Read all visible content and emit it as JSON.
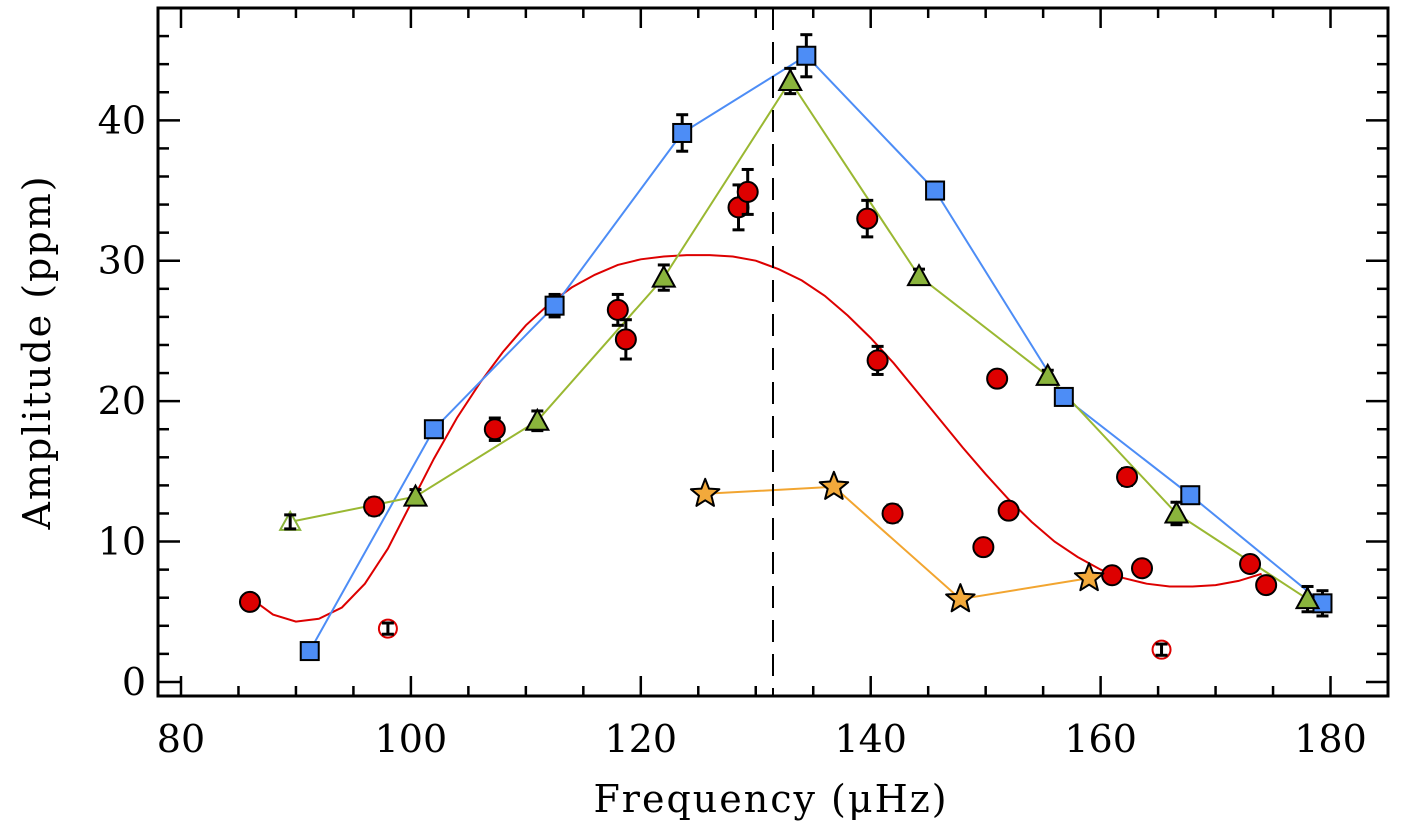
{
  "chart_data": {
    "type": "scatter",
    "xlabel": "Frequency (μHz)",
    "ylabel": "Amplitude (ppm)",
    "xlim": [
      78,
      185
    ],
    "ylim": [
      -1,
      48
    ],
    "x_ticks": [
      80,
      100,
      120,
      140,
      160,
      180
    ],
    "y_ticks": [
      0,
      10,
      20,
      30,
      40
    ],
    "grid": false,
    "vline_x": 131.5,
    "colors": {
      "blue": "#4d8df6",
      "green": "#8ab43c",
      "green_line": "#9ab832",
      "red": "#dd0000",
      "orange": "#f2a93b",
      "orange_line": "#f2a530"
    },
    "series": [
      {
        "name": "squares",
        "marker": "square",
        "color": "#4d8df6",
        "line": true,
        "points": [
          {
            "x": 91.2,
            "y": 2.2,
            "err": 0.4
          },
          {
            "x": 102.0,
            "y": 18.0,
            "err": 0.5
          },
          {
            "x": 112.5,
            "y": 26.8,
            "err": 0.8
          },
          {
            "x": 123.6,
            "y": 39.1,
            "err": 1.3
          },
          {
            "x": 134.4,
            "y": 44.6,
            "err": 1.5
          },
          {
            "x": 145.6,
            "y": 35.0,
            "err": 0.6
          },
          {
            "x": 156.8,
            "y": 20.3,
            "err": 0.5
          },
          {
            "x": 167.8,
            "y": 13.3,
            "err": 0.5
          },
          {
            "x": 179.3,
            "y": 5.6,
            "err": 0.9
          }
        ]
      },
      {
        "name": "triangles",
        "marker": "triangle",
        "color": "#8ab43c",
        "line": true,
        "points": [
          {
            "x": 89.5,
            "y": 11.4,
            "err": 0.5,
            "open": true
          },
          {
            "x": 100.4,
            "y": 13.2,
            "err": 0.5
          },
          {
            "x": 111.0,
            "y": 18.6,
            "err": 0.7
          },
          {
            "x": 122.0,
            "y": 28.8,
            "err": 0.9
          },
          {
            "x": 133.0,
            "y": 42.8,
            "err": 0.9
          },
          {
            "x": 144.2,
            "y": 28.9,
            "err": 0.5
          },
          {
            "x": 155.4,
            "y": 21.8,
            "err": 0.4
          },
          {
            "x": 166.6,
            "y": 12.0,
            "err": 0.8
          },
          {
            "x": 178.0,
            "y": 5.9,
            "err": 0.9
          }
        ]
      },
      {
        "name": "circles",
        "marker": "circle",
        "color": "#dd0000",
        "line": false,
        "points": [
          {
            "x": 86.0,
            "y": 5.7,
            "err": 0
          },
          {
            "x": 96.8,
            "y": 12.5,
            "err": 0.6
          },
          {
            "x": 98.0,
            "y": 3.8,
            "err": 0.4,
            "open": true
          },
          {
            "x": 107.3,
            "y": 18.0,
            "err": 0.8
          },
          {
            "x": 118.0,
            "y": 26.5,
            "err": 1.1
          },
          {
            "x": 118.7,
            "y": 24.4,
            "err": 1.4
          },
          {
            "x": 128.5,
            "y": 33.8,
            "err": 1.6
          },
          {
            "x": 129.3,
            "y": 34.9,
            "err": 1.6
          },
          {
            "x": 139.7,
            "y": 33.0,
            "err": 1.3
          },
          {
            "x": 140.6,
            "y": 22.9,
            "err": 1.0
          },
          {
            "x": 141.9,
            "y": 12.0,
            "err": 0.6
          },
          {
            "x": 149.8,
            "y": 9.6,
            "err": 0
          },
          {
            "x": 151.0,
            "y": 21.6,
            "err": 0
          },
          {
            "x": 152.0,
            "y": 12.2,
            "err": 0
          },
          {
            "x": 161.0,
            "y": 7.6,
            "err": 0.5
          },
          {
            "x": 162.3,
            "y": 14.6,
            "err": 0.6
          },
          {
            "x": 163.6,
            "y": 8.1,
            "err": 0.5
          },
          {
            "x": 165.3,
            "y": 2.3,
            "err": 0.4,
            "open": true
          },
          {
            "x": 173.0,
            "y": 8.4,
            "err": 0
          },
          {
            "x": 174.4,
            "y": 6.9,
            "err": 0
          }
        ]
      },
      {
        "name": "stars",
        "marker": "star",
        "color": "#f2a93b",
        "line": true,
        "points": [
          {
            "x": 125.6,
            "y": 13.4
          },
          {
            "x": 136.8,
            "y": 13.9
          },
          {
            "x": 147.8,
            "y": 5.9
          },
          {
            "x": 159.0,
            "y": 7.4
          }
        ]
      }
    ],
    "fit_curve": {
      "name": "model",
      "color": "#dd0000",
      "points": [
        {
          "x": 86.0,
          "y": 6.0
        },
        {
          "x": 88.0,
          "y": 4.8
        },
        {
          "x": 90.0,
          "y": 4.3
        },
        {
          "x": 92.0,
          "y": 4.5
        },
        {
          "x": 94.0,
          "y": 5.3
        },
        {
          "x": 96.0,
          "y": 7.0
        },
        {
          "x": 98.0,
          "y": 9.5
        },
        {
          "x": 100.0,
          "y": 12.7
        },
        {
          "x": 102.0,
          "y": 15.9
        },
        {
          "x": 104.0,
          "y": 18.8
        },
        {
          "x": 106.0,
          "y": 21.3
        },
        {
          "x": 108.0,
          "y": 23.5
        },
        {
          "x": 110.0,
          "y": 25.4
        },
        {
          "x": 112.0,
          "y": 26.9
        },
        {
          "x": 114.0,
          "y": 28.1
        },
        {
          "x": 116.0,
          "y": 29.0
        },
        {
          "x": 118.0,
          "y": 29.7
        },
        {
          "x": 120.0,
          "y": 30.1
        },
        {
          "x": 122.0,
          "y": 30.3
        },
        {
          "x": 124.0,
          "y": 30.4
        },
        {
          "x": 126.0,
          "y": 30.4
        },
        {
          "x": 128.0,
          "y": 30.3
        },
        {
          "x": 130.0,
          "y": 30.0
        },
        {
          "x": 132.0,
          "y": 29.4
        },
        {
          "x": 134.0,
          "y": 28.6
        },
        {
          "x": 136.0,
          "y": 27.5
        },
        {
          "x": 138.0,
          "y": 26.1
        },
        {
          "x": 140.0,
          "y": 24.5
        },
        {
          "x": 142.0,
          "y": 22.7
        },
        {
          "x": 144.0,
          "y": 20.7
        },
        {
          "x": 146.0,
          "y": 18.7
        },
        {
          "x": 148.0,
          "y": 16.7
        },
        {
          "x": 150.0,
          "y": 14.8
        },
        {
          "x": 152.0,
          "y": 13.0
        },
        {
          "x": 154.0,
          "y": 11.4
        },
        {
          "x": 156.0,
          "y": 10.0
        },
        {
          "x": 158.0,
          "y": 8.9
        },
        {
          "x": 160.0,
          "y": 8.0
        },
        {
          "x": 162.0,
          "y": 7.4
        },
        {
          "x": 164.0,
          "y": 7.0
        },
        {
          "x": 166.0,
          "y": 6.8
        },
        {
          "x": 168.0,
          "y": 6.8
        },
        {
          "x": 170.0,
          "y": 6.9
        },
        {
          "x": 172.0,
          "y": 7.2
        },
        {
          "x": 174.0,
          "y": 7.7
        }
      ]
    }
  }
}
